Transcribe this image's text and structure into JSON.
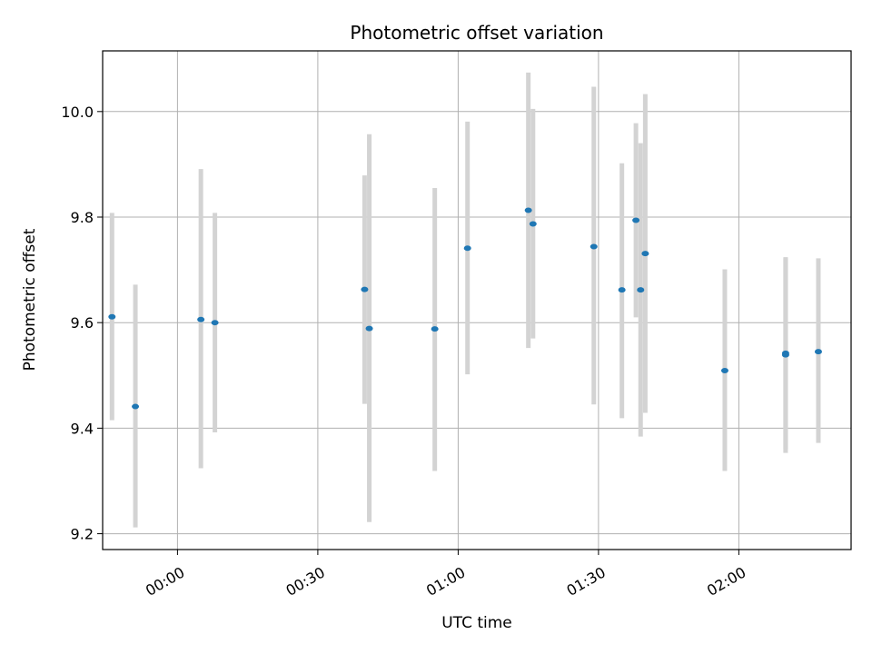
{
  "chart_data": {
    "type": "scatter",
    "title": "Photometric offset variation",
    "xlabel": "UTC time",
    "ylabel": "Photometric offset",
    "x_unit": "UTC time (HH:MM)",
    "xlim": [
      "-00:16",
      "02:24"
    ],
    "ylim": [
      9.17,
      10.115
    ],
    "x_ticks": [
      "00:00",
      "00:30",
      "01:00",
      "01:30",
      "02:00"
    ],
    "y_ticks": [
      "9.2",
      "9.4",
      "9.6",
      "9.8",
      "10.0"
    ],
    "grid": true,
    "legend": "none",
    "colors": {
      "point": "#1f77b4",
      "errorbar": "#d3d3d3",
      "grid": "#b0b0b0",
      "axes": "#000000"
    },
    "points": [
      {
        "x": "-00:14",
        "y": 9.611,
        "err_low": 9.415,
        "err_high": 9.808
      },
      {
        "x": "-00:09",
        "y": 9.441,
        "err_low": 9.212,
        "err_high": 9.672
      },
      {
        "x": "00:05",
        "y": 9.606,
        "err_low": 9.324,
        "err_high": 9.891
      },
      {
        "x": "00:08",
        "y": 9.6,
        "err_low": 9.392,
        "err_high": 9.808
      },
      {
        "x": "00:40",
        "y": 9.663,
        "err_low": 9.446,
        "err_high": 9.879
      },
      {
        "x": "00:41",
        "y": 9.589,
        "err_low": 9.222,
        "err_high": 9.957
      },
      {
        "x": "00:55",
        "y": 9.588,
        "err_low": 9.319,
        "err_high": 9.855
      },
      {
        "x": "01:02",
        "y": 9.741,
        "err_low": 9.502,
        "err_high": 9.981
      },
      {
        "x": "01:15",
        "y": 9.813,
        "err_low": 9.552,
        "err_high": 10.074
      },
      {
        "x": "01:16",
        "y": 9.787,
        "err_low": 9.57,
        "err_high": 10.005
      },
      {
        "x": "01:29",
        "y": 9.744,
        "err_low": 9.445,
        "err_high": 10.047
      },
      {
        "x": "01:35",
        "y": 9.662,
        "err_low": 9.419,
        "err_high": 9.902
      },
      {
        "x": "01:38",
        "y": 9.794,
        "err_low": 9.61,
        "err_high": 9.978
      },
      {
        "x": "01:39",
        "y": 9.662,
        "err_low": 9.384,
        "err_high": 9.94
      },
      {
        "x": "01:40",
        "y": 9.731,
        "err_low": 9.429,
        "err_high": 10.033
      },
      {
        "x": "01:57",
        "y": 9.509,
        "err_low": 9.319,
        "err_high": 9.701
      },
      {
        "x": "02:10",
        "y": 9.539,
        "err_low": 9.353,
        "err_high": 9.724
      },
      {
        "x": "02:10",
        "y": 9.542,
        "err_low": 9.36,
        "err_high": 9.722
      },
      {
        "x": "02:17",
        "y": 9.545,
        "err_low": 9.372,
        "err_high": 9.722
      }
    ]
  }
}
